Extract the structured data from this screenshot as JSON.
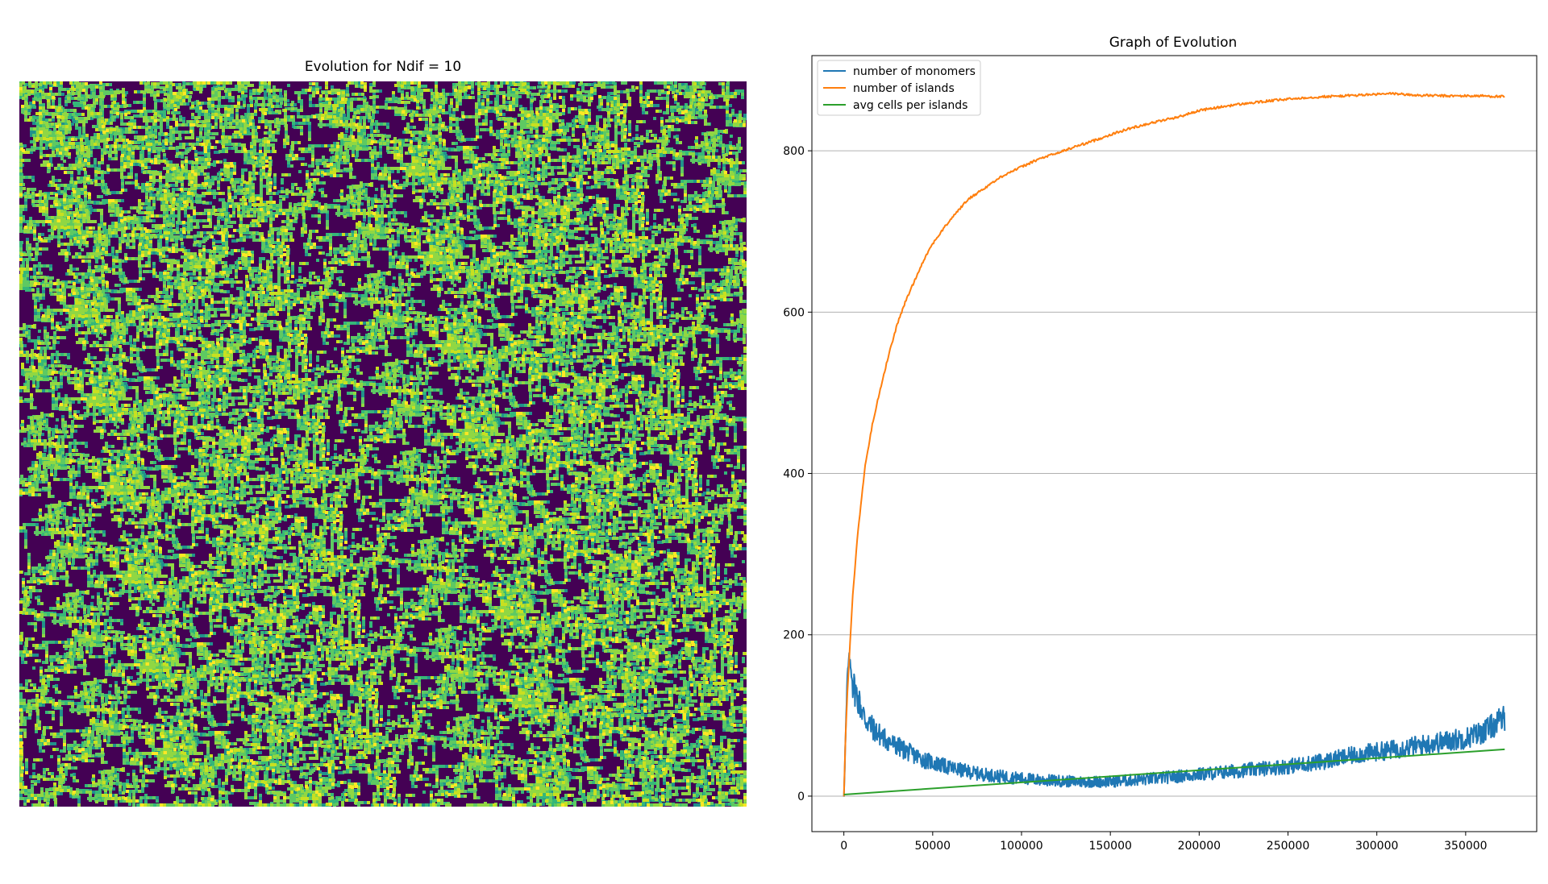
{
  "left_panel": {
    "title": "Evolution for Ndif = 10"
  },
  "right_panel": {
    "title": "Graph of Evolution"
  },
  "chart_data": [
    {
      "type": "heatmap",
      "title": "Evolution for Ndif = 10",
      "colormap": "viridis",
      "background_color": "#440154",
      "island_colors": [
        "#21918c",
        "#35b779",
        "#5ec962",
        "#90d743",
        "#c8e020",
        "#fde725"
      ],
      "description_values": {
        "grid_visible": false,
        "axes_visible": false
      }
    },
    {
      "type": "line",
      "title": "Graph of Evolution",
      "xlim": [
        -18000,
        390000
      ],
      "ylim": [
        -44,
        918
      ],
      "xticks": [
        0,
        50000,
        100000,
        150000,
        200000,
        250000,
        300000,
        350000
      ],
      "yticks": [
        0,
        200,
        400,
        600,
        800
      ],
      "grid": "y-axis only",
      "legend_position": "upper left",
      "series": [
        {
          "name": "number of monomers",
          "color": "#1f77b4",
          "x": [
            0,
            2000,
            3000,
            5000,
            8000,
            12000,
            18000,
            25000,
            35000,
            45000,
            60000,
            75000,
            90000,
            110000,
            130000,
            150000,
            170000,
            190000,
            210000,
            230000,
            250000,
            270000,
            290000,
            310000,
            330000,
            350000,
            360000,
            372000
          ],
          "y": [
            2,
            150,
            172,
            140,
            120,
            95,
            80,
            68,
            56,
            45,
            35,
            28,
            24,
            20,
            18,
            18,
            21,
            25,
            29,
            33,
            37,
            43,
            52,
            58,
            65,
            72,
            80,
            97
          ]
        },
        {
          "name": "number of islands",
          "color": "#ff7f0e",
          "x": [
            0,
            1000,
            2000,
            3000,
            5000,
            8000,
            12000,
            16000,
            20000,
            25000,
            30000,
            35000,
            40000,
            45000,
            50000,
            60000,
            70000,
            80000,
            90000,
            100000,
            110000,
            120000,
            130000,
            140000,
            150000,
            160000,
            170000,
            180000,
            190000,
            200000,
            220000,
            240000,
            260000,
            280000,
            300000,
            310000,
            320000,
            340000,
            360000,
            372000
          ],
          "y": [
            0,
            80,
            130,
            170,
            250,
            330,
            410,
            460,
            500,
            545,
            585,
            615,
            640,
            665,
            685,
            715,
            740,
            755,
            770,
            780,
            790,
            797,
            805,
            812,
            820,
            827,
            833,
            838,
            843,
            850,
            857,
            862,
            866,
            868,
            870,
            871,
            869,
            868,
            868,
            867
          ]
        },
        {
          "name": "avg cells per islands",
          "color": "#2ca02c",
          "x": [
            0,
            372000
          ],
          "y": [
            2,
            58
          ]
        }
      ]
    }
  ]
}
